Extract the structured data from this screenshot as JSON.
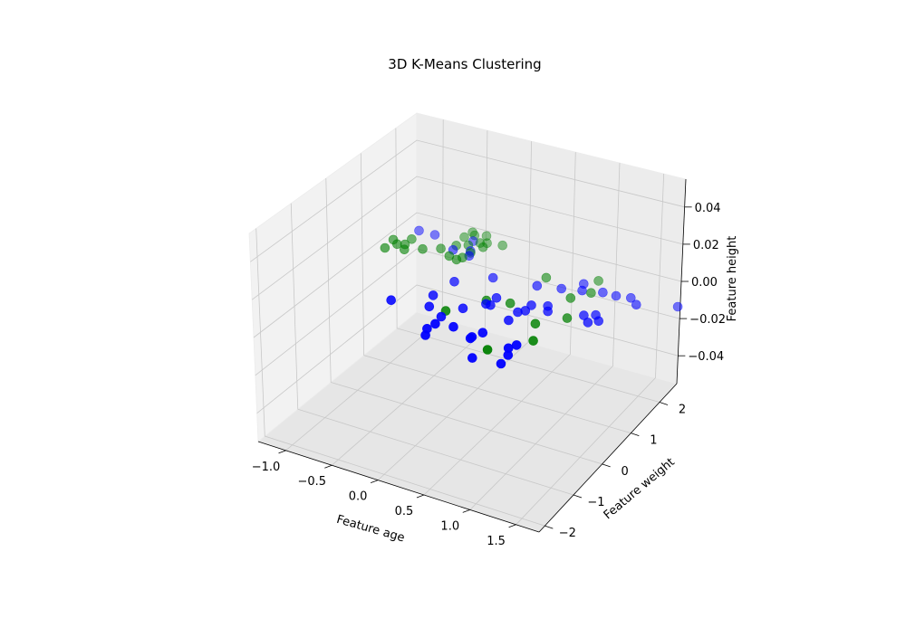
{
  "chart_data": {
    "type": "scatter",
    "title": "3D K-Means Clustering",
    "xlabel": "Feature age",
    "ylabel": "Feature weight",
    "zlabel": "Feature height",
    "xlim": [
      -1.3,
      1.75
    ],
    "ylim": [
      -2.2,
      2.6
    ],
    "zlim": [
      -0.055,
      0.055
    ],
    "xticks": [
      -1.0,
      -0.5,
      0.0,
      0.5,
      1.0,
      1.5
    ],
    "yticks": [
      -2,
      -1,
      0,
      1,
      2
    ],
    "zticks": [
      -0.04,
      -0.02,
      0.0,
      0.02,
      0.04
    ],
    "xtick_labels": [
      "−1.0",
      "−0.5",
      "0.0",
      "0.5",
      "1.0",
      "1.5"
    ],
    "ytick_labels": [
      "−2",
      "−1",
      "0",
      "1",
      "2"
    ],
    "ztick_labels": [
      "−0.04",
      "−0.02",
      "0.00",
      "0.02",
      "0.04"
    ],
    "grid": true,
    "series": [
      {
        "color": "#0000ff",
        "points": [
          [
            -1.08,
            2.1,
            0
          ],
          [
            -0.9,
            2.1,
            0
          ],
          [
            -0.5,
            2.2,
            0
          ],
          [
            -0.58,
            1.8,
            0
          ],
          [
            -0.42,
            1.9,
            0
          ],
          [
            -0.38,
            1.75,
            0
          ],
          [
            0.9,
            1.8,
            0
          ],
          [
            -0.24,
            0.9,
            0
          ],
          [
            0.05,
            1.3,
            0
          ],
          [
            0.51,
            1.4,
            0
          ],
          [
            0.75,
            1.5,
            0
          ],
          [
            0.95,
            1.6,
            0
          ],
          [
            1.15,
            1.7,
            0
          ],
          [
            1.3,
            1.7,
            0
          ],
          [
            1.45,
            1.75,
            0
          ],
          [
            1.56,
            1.6,
            0
          ],
          [
            1.95,
            1.85,
            0
          ],
          [
            0.28,
            0.75,
            0
          ],
          [
            0.3,
            0.5,
            0
          ],
          [
            0.65,
            0.6,
            0
          ],
          [
            0.65,
            0.8,
            0
          ],
          [
            0.6,
            0.5,
            0
          ],
          [
            0.85,
            0.75,
            0
          ],
          [
            0.8,
            0.9,
            0
          ],
          [
            0.6,
            0.2,
            0
          ],
          [
            0.25,
            0.5,
            0
          ],
          [
            0.1,
            0.2,
            0
          ],
          [
            1.3,
            1.0,
            0
          ],
          [
            1.2,
            0.9,
            0
          ],
          [
            1.38,
            0.85,
            0
          ],
          [
            1.3,
            0.73,
            0
          ],
          [
            -0.58,
            -0.1,
            0
          ],
          [
            -0.2,
            0.0,
            0
          ],
          [
            -0.28,
            0.35,
            0
          ],
          [
            0.0,
            -0.2,
            0
          ],
          [
            0.02,
            -0.45,
            0
          ],
          [
            0.0,
            -0.65,
            0
          ],
          [
            0.05,
            -0.85,
            0
          ],
          [
            0.45,
            -0.55,
            0
          ],
          [
            0.5,
            -0.35,
            0
          ],
          [
            0.2,
            -0.4,
            0
          ],
          [
            0.45,
            -0.6,
            0
          ],
          [
            0.9,
            -0.45,
            0
          ],
          [
            0.86,
            -0.6,
            0
          ],
          [
            0.92,
            -0.8,
            0
          ],
          [
            0.94,
            -1.1,
            0
          ],
          [
            0.65,
            -1.15,
            0
          ]
        ]
      },
      {
        "color": "#008000",
        "points": [
          [
            -1.18,
            1.35,
            0
          ],
          [
            -1.12,
            1.55,
            0
          ],
          [
            -1.2,
            1.65,
            0
          ],
          [
            -1.05,
            1.6,
            0
          ],
          [
            -1.0,
            1.45,
            0
          ],
          [
            -1.05,
            1.8,
            0
          ],
          [
            -0.85,
            1.6,
            0
          ],
          [
            -0.7,
            1.75,
            0
          ],
          [
            -0.55,
            1.6,
            0
          ],
          [
            -0.45,
            1.55,
            0
          ],
          [
            -0.6,
            1.95,
            0
          ],
          [
            -0.42,
            1.65,
            0
          ],
          [
            -0.4,
            1.85,
            0
          ],
          [
            -0.5,
            2.05,
            0
          ],
          [
            -0.35,
            2.1,
            0
          ],
          [
            -0.2,
            2.3,
            0
          ],
          [
            -0.42,
            2.2,
            0
          ],
          [
            -0.62,
            2.25,
            0
          ],
          [
            -0.6,
            2.45,
            0
          ],
          [
            -0.55,
            2.38,
            0
          ],
          [
            -0.44,
            2.45,
            0
          ],
          [
            -0.36,
            2.25,
            0
          ],
          [
            0.51,
            1.7,
            0
          ],
          [
            1.0,
            2.0,
            0
          ],
          [
            1.05,
            1.6,
            0
          ],
          [
            0.92,
            1.3,
            0
          ],
          [
            0.45,
            0.7,
            0
          ],
          [
            0.22,
            0.6,
            0
          ],
          [
            -0.02,
            0.0,
            0
          ],
          [
            0.86,
            0.3,
            0
          ],
          [
            1.08,
            0.7,
            0
          ],
          [
            1.0,
            -0.2,
            0
          ],
          [
            0.7,
            -0.8,
            0
          ]
        ]
      }
    ]
  }
}
